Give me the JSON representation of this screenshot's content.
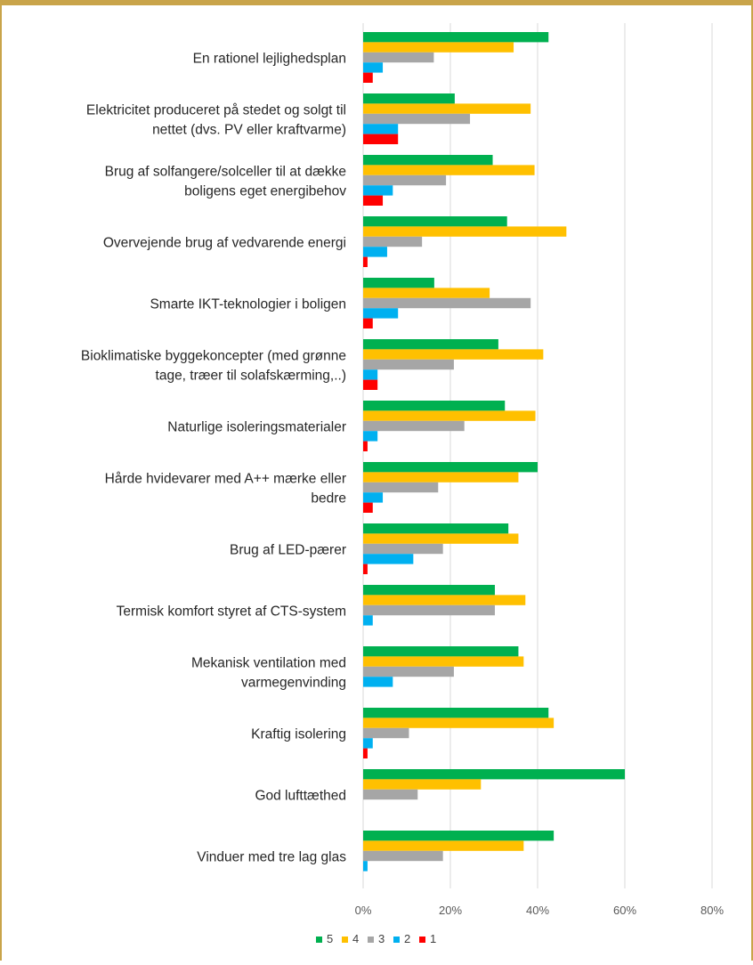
{
  "chart_data": {
    "type": "bar",
    "orientation": "horizontal",
    "title": "",
    "xlabel": "",
    "ylabel": "",
    "xlim": [
      0,
      0.8
    ],
    "x_ticks": [
      "0%",
      "20%",
      "40%",
      "60%",
      "80%"
    ],
    "x_tick_values": [
      0,
      0.2,
      0.4,
      0.6,
      0.8
    ],
    "grid": "vertical",
    "legend_position": "bottom",
    "categories": [
      [
        "En rationel lejlighedsplan"
      ],
      [
        "Elektricitet produceret på stedet og solgt til",
        "nettet (dvs. PV eller kraftvarme)"
      ],
      [
        "Brug af solfangere/solceller til at dække",
        "boligens eget energibehov"
      ],
      [
        "Overvejende brug af vedvarende energi"
      ],
      [
        "Smarte IKT-teknologier i boligen"
      ],
      [
        "Bioklimatiske byggekoncepter (med grønne",
        "tage, træer til solafskærming,..)"
      ],
      [
        "Naturlige isoleringsmaterialer"
      ],
      [
        "Hårde hvidevarer med A++ mærke eller",
        "bedre"
      ],
      [
        "Brug af LED-pærer"
      ],
      [
        "Termisk komfort styret af CTS-system"
      ],
      [
        "Mekanisk ventilation med",
        "varmegenvinding"
      ],
      [
        "Kraftig isolering"
      ],
      [
        "God lufttæthed"
      ],
      [
        "Vinduer med tre lag glas"
      ]
    ],
    "series": [
      {
        "name": "5",
        "color": "#00b050",
        "values": [
          0.425,
          0.21,
          0.297,
          0.33,
          0.163,
          0.31,
          0.325,
          0.4,
          0.333,
          0.302,
          0.356,
          0.425,
          0.6,
          0.437
        ]
      },
      {
        "name": "4",
        "color": "#ffc000",
        "values": [
          0.345,
          0.384,
          0.393,
          0.466,
          0.29,
          0.413,
          0.395,
          0.356,
          0.356,
          0.372,
          0.368,
          0.437,
          0.27,
          0.368
        ]
      },
      {
        "name": "3",
        "color": "#a6a6a6",
        "values": [
          0.162,
          0.245,
          0.19,
          0.135,
          0.384,
          0.208,
          0.232,
          0.172,
          0.183,
          0.302,
          0.208,
          0.105,
          0.125,
          0.183
        ]
      },
      {
        "name": "2",
        "color": "#00b0f0",
        "values": [
          0.045,
          0.08,
          0.068,
          0.055,
          0.08,
          0.033,
          0.033,
          0.045,
          0.115,
          0.022,
          0.068,
          0.022,
          0,
          0.01
        ]
      },
      {
        "name": "1",
        "color": "#ff0000",
        "values": [
          0.022,
          0.08,
          0.045,
          0.01,
          0.022,
          0.033,
          0.01,
          0.022,
          0.01,
          0,
          0,
          0.01,
          0,
          0
        ]
      }
    ]
  }
}
